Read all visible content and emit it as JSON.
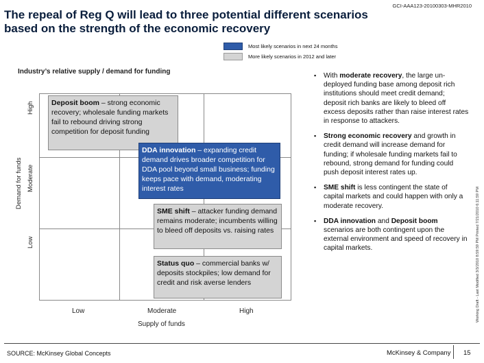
{
  "header": {
    "doc_id": "GCI-AAA123-20100303-MHR2010",
    "title_line1": "The repeal of Reg Q will lead to three potential different scenarios",
    "title_line2": "based on the strength of the economic recovery"
  },
  "legend": {
    "items": [
      {
        "label": "Most likely scenarios in next 24 months",
        "color": "#2f5ca9"
      },
      {
        "label": "More likely scenarios in 2012 and later",
        "color": "#d4d4d4"
      }
    ]
  },
  "chart": {
    "title": "Industry’s relative supply / demand for funding",
    "y_axis_title": "Demand for funds",
    "y_levels": [
      "High",
      "Moderate",
      "Low"
    ],
    "x_axis_title": "Supply of funds",
    "x_levels": [
      "Low",
      "Moderate",
      "High"
    ],
    "scenarios": [
      {
        "name": "Deposit boom",
        "desc": " – strong economic recovery; wholesale funding markets fail to rebound driving strong competition for deposit funding",
        "tier": "light"
      },
      {
        "name": "DDA innovation",
        "desc": " – expanding credit demand drives broader competition for DDA pool beyond small business; funding keeps pace with demand, moderating interest rates",
        "tier": "dark"
      },
      {
        "name": "SME shift",
        "desc": " – attacker funding demand remains moderate; incumbents willing to bleed off deposits vs. raising rates",
        "tier": "light"
      },
      {
        "name": "Status quo",
        "desc": " – commercial banks w/ deposits stockpiles; low demand for credit and risk averse lenders",
        "tier": "light"
      }
    ]
  },
  "bullets": [
    {
      "pre": "With ",
      "bold": "moderate recovery",
      "post": ", the large un-deployed funding base among deposit rich institutions should meet credit demand; deposit rich banks are likely to bleed off excess deposits rather than raise interest rates in response to attackers."
    },
    {
      "pre": "",
      "bold": "Strong economic recovery",
      "post": " and growth in credit demand will increase demand for funding; if wholesale funding markets fail to rebound, strong demand for funding could push deposit interest rates up."
    },
    {
      "pre": "",
      "bold": "SME shift",
      "post": " is less contingent the state of capital markets and could happen with only a moderate recovery."
    },
    {
      "pre": "",
      "bold": "DDA innovation",
      "post": " and ",
      "bold2": "Deposit boom",
      "post2": " scenarios are both contingent upon the external environment and speed of recovery in capital markets."
    }
  ],
  "side_note": "Working Draft - Last Modified 3/3/2010 8:59:59 PM        Printed 7/21/2010 6:11:59 PM",
  "footer": {
    "source": "SOURCE: McKinsey Global Concepts",
    "brand": "McKinsey & Company",
    "page": "15"
  }
}
